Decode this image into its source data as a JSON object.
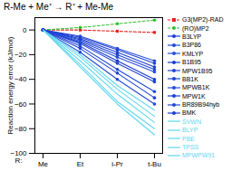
{
  "chart_data": {
    "type": "line",
    "title": "R-Me + Me⁺ → R⁺ + Me-Me",
    "xlabel": "R:",
    "ylabel": "Reaction energy error (kJ/mol)",
    "categories": [
      "Me",
      "Et",
      "i-Pr",
      "t-Bu"
    ],
    "ylim": [
      -100,
      10
    ],
    "yticks": [
      0,
      -20,
      -40,
      -60,
      -80,
      -100
    ],
    "grid": false,
    "legend": "right",
    "series": [
      {
        "name": "G3(MP2)-RAD",
        "color": "#e8231f",
        "marker": "square",
        "line_style": "dashed",
        "values": [
          0,
          0,
          -1,
          -2
        ]
      },
      {
        "name": "(RO)MP2",
        "color": "#2fc02f",
        "marker": "circle",
        "line_style": "dashed",
        "values": [
          0,
          2,
          5,
          8
        ]
      },
      {
        "name": "B3LYP",
        "color": "#1c3fd6",
        "marker": "circle",
        "line_style": "solid",
        "values": [
          0,
          -15,
          -35,
          -55
        ]
      },
      {
        "name": "B3P86",
        "color": "#2248d8",
        "marker": "circle",
        "line_style": "solid",
        "values": [
          0,
          -13,
          -32,
          -50
        ]
      },
      {
        "name": "KMLYP",
        "color": "#2a50da",
        "marker": "circle",
        "line_style": "solid",
        "values": [
          0,
          -5,
          -15,
          -25
        ]
      },
      {
        "name": "B1B95",
        "color": "#1a3acc",
        "marker": "circle",
        "line_style": "solid",
        "values": [
          0,
          -10,
          -25,
          -40
        ]
      },
      {
        "name": "MPW1B95",
        "color": "#2145d2",
        "marker": "circle",
        "line_style": "solid",
        "values": [
          0,
          -11,
          -27,
          -42
        ]
      },
      {
        "name": "BB1K",
        "color": "#1f44d4",
        "marker": "circle",
        "line_style": "solid",
        "values": [
          0,
          -8,
          -20,
          -32
        ]
      },
      {
        "name": "MPWB1K",
        "color": "#2a4ed8",
        "marker": "circle",
        "line_style": "solid",
        "values": [
          0,
          -9,
          -22,
          -34
        ]
      },
      {
        "name": "MPW1K",
        "color": "#1b3fd0",
        "marker": "circle",
        "line_style": "solid",
        "values": [
          0,
          -7,
          -18,
          -30
        ]
      },
      {
        "name": "BR89B94hyb",
        "color": "#2449d6",
        "marker": "circle",
        "line_style": "solid",
        "values": [
          0,
          -18,
          -40,
          -60
        ]
      },
      {
        "name": "BMK",
        "color": "#1d40d2",
        "marker": "circle",
        "line_style": "solid",
        "values": [
          0,
          -6,
          -16,
          -27
        ]
      },
      {
        "name": "SVWN",
        "color": "#5fd6f0",
        "marker": "none",
        "line_style": "solid",
        "values": [
          0,
          -20,
          -45,
          -65
        ]
      },
      {
        "name": "BLYP",
        "color": "#5fd6f0",
        "marker": "none",
        "line_style": "solid",
        "values": [
          0,
          -30,
          -60,
          -85
        ]
      },
      {
        "name": "PBE",
        "color": "#5fd6f0",
        "marker": "none",
        "line_style": "solid",
        "values": [
          0,
          -25,
          -52,
          -75
        ]
      },
      {
        "name": "TPSS",
        "color": "#5fd6f0",
        "marker": "none",
        "line_style": "solid",
        "values": [
          0,
          -22,
          -48,
          -70
        ]
      },
      {
        "name": "MPWPW91",
        "color": "#5fd6f0",
        "marker": "none",
        "line_style": "solid",
        "values": [
          0,
          -28,
          -58,
          -80
        ]
      }
    ]
  }
}
